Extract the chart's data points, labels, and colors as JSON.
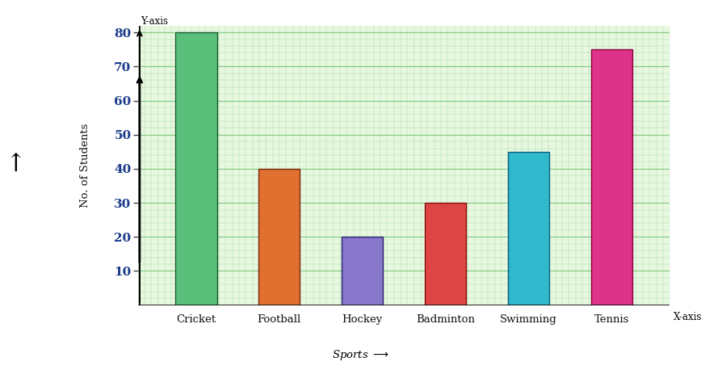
{
  "categories": [
    "Cricket",
    "Football",
    "Hockey",
    "Badminton",
    "Swimming",
    "Tennis"
  ],
  "values": [
    80,
    40,
    20,
    30,
    45,
    75
  ],
  "bar_colors": [
    "#5abf7a",
    "#e07030",
    "#8878cc",
    "#dd4444",
    "#30b8cc",
    "#dd3388"
  ],
  "bar_edge_colors": [
    "#1a5a30",
    "#7a2810",
    "#2a2070",
    "#881010",
    "#0a6080",
    "#880040"
  ],
  "ylabel": "No. of Students",
  "ylim_max": 80,
  "yticks": [
    10,
    20,
    30,
    40,
    50,
    60,
    70,
    80
  ],
  "grid_color_major": "#88cc88",
  "grid_color_minor": "#aaddaa",
  "bg_color_plot": "#e8f8e0",
  "bg_color_fig": "#f5fff0",
  "bar_width": 0.5,
  "fig_width": 8.94,
  "fig_height": 4.53
}
